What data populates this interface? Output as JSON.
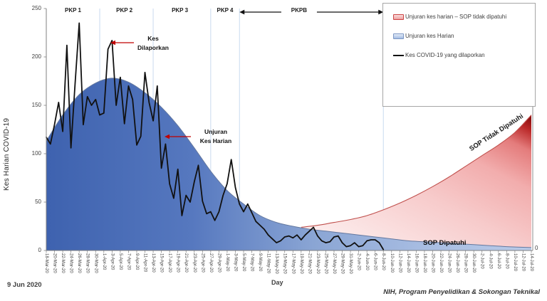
{
  "report_date": "9 Jun 2020",
  "footer_credit": "NIH, Program Penyelidikan & Sokongan Teknikal",
  "legend": {
    "items": [
      {
        "swatch": "red-area-swatch",
        "label": "Unjuran kes harian – SOP tidak dipatuhi"
      },
      {
        "swatch": "blue-area-swatch",
        "label": "Unjuran kes Harian"
      },
      {
        "swatch": "black-line-swatch",
        "label": "Kes COVID-19 yang dilaporkan"
      }
    ]
  },
  "annotations": {
    "kes_dilaporkan_line1": "Kes",
    "kes_dilaporkan_line2": "Dilaporkan",
    "unjuran_line1": "Unjuran",
    "unjuran_line2": "Kes Harian",
    "sop_tidak_dipatuhi": "SOP Tidak Dipatuhi",
    "sop_dipatuhi": "SOP Dipatuhi",
    "secondary_axis_zero": "0"
  },
  "chart_data": {
    "type": "area",
    "title": "",
    "xlabel": "Day",
    "ylabel": "Kes Harian COVID-19",
    "ylim": [
      0,
      250
    ],
    "y_ticks": [
      0,
      50,
      100,
      150,
      200,
      250
    ],
    "x_start_date": "18-Mar-20",
    "x_end_date": "14-Jul-20",
    "x_total_days": 118,
    "x_tick_step_days": 2,
    "grid": "vertical-phase-boundaries",
    "legend_position": "top-right",
    "x_tick_labels": [
      "18-Mar-20",
      "20-Mar-20",
      "22-Mar-20",
      "24-Mar-20",
      "26-Mar-20",
      "28-Mar-20",
      "30-Mar-20",
      "1-Apr-20",
      "3-Apr-20",
      "5-Apr-20",
      "7-Apr-20",
      "9-Apr-20",
      "11-Apr-20",
      "13-Apr-20",
      "15-Apr-20",
      "17-Apr-20",
      "19-Apr-20",
      "21-Apr-20",
      "23-Apr-20",
      "25-Apr-20",
      "27-Apr-20",
      "29-Apr-20",
      "1-May-20",
      "3-May-20",
      "5-May-20",
      "7-May-20",
      "9-May-20",
      "11-May-20",
      "13-May-20",
      "15-May-20",
      "17-May-20",
      "19-May-20",
      "21-May-20",
      "23-May-20",
      "25-May-20",
      "27-May-20",
      "29-May-20",
      "31-May-20",
      "2-Jun-20",
      "4-Jun-20",
      "6-Jun-20",
      "8-Jun-20",
      "10-Jun-20",
      "12-Jun-20",
      "14-Jun-20",
      "16-Jun-20",
      "18-Jun-20",
      "20-Jun-20",
      "22-Jun-20",
      "24-Jun-20",
      "26-Jun-20",
      "28-Jun-20",
      "30-Jun-20",
      "2-Jul-20",
      "4-Jul-20",
      "6-Jul-20",
      "8-Jul-20",
      "10-Jul-20",
      "12-Jul-20",
      "14-Jul-20"
    ],
    "phases": {
      "labels": [
        {
          "label": "PKP 1",
          "center_day": 6.5
        },
        {
          "label": "PKP 2",
          "center_day": 19
        },
        {
          "label": "PKP 3",
          "center_day": 32.5
        },
        {
          "label": "PKP 4",
          "center_day": 43.5
        }
      ],
      "pkpb": {
        "label": "PKPB",
        "start_day": 47,
        "end_day": 82,
        "center_day": 61.5
      },
      "boundary_days": [
        13,
        26,
        40,
        47,
        82
      ],
      "boundary_dates": [
        "31-Mar-20",
        "13-Apr-20",
        "27-Apr-20",
        "4-May-20",
        "8-Jun-20"
      ]
    },
    "series": [
      {
        "name": "Kes COVID-19 yang dilaporkan",
        "type": "line",
        "color": "#111111",
        "start_day": 0,
        "start_date": "18-Mar-20",
        "end_date": "8-Jun-20",
        "values": [
          117,
          110,
          130,
          153,
          123,
          212,
          106,
          172,
          235,
          130,
          159,
          150,
          156,
          140,
          142,
          208,
          217,
          150,
          179,
          131,
          170,
          156,
          109,
          118,
          184,
          153,
          134,
          170,
          85,
          110,
          69,
          54,
          84,
          36,
          57,
          50,
          71,
          88,
          51,
          38,
          40,
          31,
          40,
          57,
          69,
          94,
          65,
          48,
          40,
          48,
          39,
          30,
          26,
          22,
          16,
          12,
          8,
          10,
          14,
          15,
          13,
          16,
          11,
          16,
          20,
          24,
          15,
          10,
          8,
          9,
          14,
          15,
          8,
          4,
          5,
          8,
          4,
          5,
          10,
          11,
          11,
          8,
          1
        ]
      },
      {
        "name": "Unjuran kes Harian",
        "type": "area",
        "gradient": [
          "#3e62af",
          "#b8cae8"
        ],
        "edge_color": "#64789f",
        "points": [
          [
            0,
            113
          ],
          [
            4,
            140
          ],
          [
            8,
            161
          ],
          [
            12,
            173
          ],
          [
            16,
            178
          ],
          [
            20,
            174
          ],
          [
            24,
            163
          ],
          [
            28,
            148
          ],
          [
            32,
            129
          ],
          [
            36,
            106
          ],
          [
            40,
            82
          ],
          [
            44,
            62
          ],
          [
            48,
            48
          ],
          [
            52,
            36
          ],
          [
            56,
            29
          ],
          [
            60,
            25
          ],
          [
            64,
            22
          ],
          [
            68,
            20
          ],
          [
            72,
            18
          ],
          [
            76,
            16
          ],
          [
            80,
            14
          ],
          [
            84,
            12
          ],
          [
            88,
            10
          ],
          [
            92,
            9
          ],
          [
            96,
            8
          ],
          [
            100,
            7
          ],
          [
            104,
            6
          ],
          [
            108,
            5
          ],
          [
            112,
            4
          ],
          [
            118,
            3
          ]
        ]
      },
      {
        "name": "Unjuran kes harian – SOP tidak dipatuhi",
        "type": "area",
        "gradient": [
          "#fdf2f2",
          "#8b0f0f"
        ],
        "edge_color": "#c0504d",
        "points": [
          [
            62,
            24
          ],
          [
            66,
            26
          ],
          [
            70,
            29
          ],
          [
            74,
            32
          ],
          [
            78,
            36
          ],
          [
            82,
            42
          ],
          [
            86,
            49
          ],
          [
            90,
            57
          ],
          [
            94,
            66
          ],
          [
            98,
            76
          ],
          [
            102,
            87
          ],
          [
            106,
            98
          ],
          [
            110,
            109
          ],
          [
            114,
            122
          ],
          [
            118,
            140
          ]
        ]
      }
    ]
  },
  "colors": {
    "grid_line": "#c9daef",
    "axis_line": "#808080",
    "annotation_arrow": "#c00000",
    "tick_text": "#404040"
  }
}
